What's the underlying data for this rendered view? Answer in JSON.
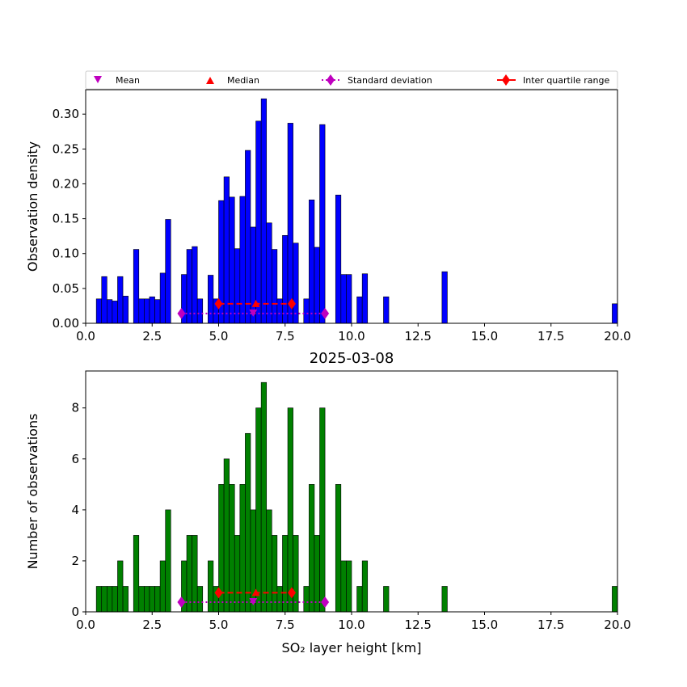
{
  "legend": {
    "entries": [
      {
        "label": "Mean",
        "marker": "triangle-down",
        "color": "#bf00bf"
      },
      {
        "label": "Median",
        "marker": "triangle-up",
        "color": "#ff0000"
      },
      {
        "label": "Standard deviation",
        "marker": "diamond-dotted-line",
        "color": "#bf00bf"
      },
      {
        "label": "Inter quartile range",
        "marker": "diamond-solid-line",
        "color": "#ff0000"
      }
    ]
  },
  "chart_data": [
    {
      "type": "bar",
      "title": "",
      "xlabel": "",
      "ylabel": "Observation density",
      "xlim": [
        0,
        20
      ],
      "ylim": [
        0,
        0.335
      ],
      "xticks": [
        "0.0",
        "2.5",
        "5.0",
        "7.5",
        "10.0",
        "12.5",
        "15.0",
        "17.5",
        "20.0"
      ],
      "xtick_values": [
        0,
        2.5,
        5,
        7.5,
        10,
        12.5,
        15,
        17.5,
        20
      ],
      "yticks": [
        "0.00",
        "0.05",
        "0.10",
        "0.15",
        "0.20",
        "0.25",
        "0.30"
      ],
      "ytick_values": [
        0,
        0.05,
        0.1,
        0.15,
        0.2,
        0.25,
        0.3
      ],
      "bar_color": "#0000ff",
      "bin_width": 0.2,
      "bin_left": [
        0.4,
        0.6,
        0.8,
        1.0,
        1.2,
        1.4,
        1.8,
        2.0,
        2.2,
        2.4,
        2.6,
        2.8,
        3.0,
        3.6,
        3.8,
        4.0,
        4.2,
        4.6,
        4.8,
        5.0,
        5.2,
        5.4,
        5.6,
        5.8,
        6.0,
        6.2,
        6.4,
        6.6,
        6.8,
        7.0,
        7.2,
        7.4,
        7.6,
        7.8,
        8.2,
        8.4,
        8.6,
        8.8,
        9.4,
        9.6,
        9.8,
        10.2,
        10.4,
        11.2,
        13.4,
        19.8
      ],
      "values": [
        0.035,
        0.067,
        0.034,
        0.032,
        0.067,
        0.039,
        0.106,
        0.035,
        0.035,
        0.038,
        0.034,
        0.072,
        0.149,
        0.07,
        0.106,
        0.11,
        0.035,
        0.069,
        0.035,
        0.176,
        0.21,
        0.181,
        0.107,
        0.182,
        0.248,
        0.138,
        0.29,
        0.322,
        0.144,
        0.106,
        0.035,
        0.126,
        0.287,
        0.115,
        0.035,
        0.177,
        0.109,
        0.285,
        0.184,
        0.07,
        0.07,
        0.038,
        0.071,
        0.038,
        0.074,
        0.028
      ],
      "stats": {
        "mean": 6.3,
        "median": 6.4,
        "std_range": [
          3.6,
          9.0
        ],
        "iqr_range": [
          5.0,
          7.75
        ],
        "y_level_std": 0.014,
        "y_level_iqr": 0.028
      }
    },
    {
      "type": "bar",
      "title": "2025-03-08",
      "xlabel": "SO₂ layer height [km]",
      "ylabel": "Number of observations",
      "xlim": [
        0,
        20
      ],
      "ylim": [
        0,
        9.45
      ],
      "xticks": [
        "0.0",
        "2.5",
        "5.0",
        "7.5",
        "10.0",
        "12.5",
        "15.0",
        "17.5",
        "20.0"
      ],
      "xtick_values": [
        0,
        2.5,
        5,
        7.5,
        10,
        12.5,
        15,
        17.5,
        20
      ],
      "yticks": [
        "0",
        "2",
        "4",
        "6",
        "8"
      ],
      "ytick_values": [
        0,
        2,
        4,
        6,
        8
      ],
      "bar_color": "#008000",
      "bin_width": 0.2,
      "bin_left": [
        0.4,
        0.6,
        0.8,
        1.0,
        1.2,
        1.4,
        1.8,
        2.0,
        2.2,
        2.4,
        2.6,
        2.8,
        3.0,
        3.6,
        3.8,
        4.0,
        4.2,
        4.6,
        4.8,
        5.0,
        5.2,
        5.4,
        5.6,
        5.8,
        6.0,
        6.2,
        6.4,
        6.6,
        6.8,
        7.0,
        7.2,
        7.4,
        7.6,
        7.8,
        8.2,
        8.4,
        8.6,
        8.8,
        9.4,
        9.6,
        9.8,
        10.2,
        10.4,
        11.2,
        13.4,
        19.8
      ],
      "values": [
        1,
        1,
        1,
        1,
        2,
        1,
        3,
        1,
        1,
        1,
        1,
        2,
        4,
        2,
        3,
        3,
        1,
        2,
        1,
        5,
        6,
        5,
        3,
        5,
        7,
        4,
        8,
        9,
        4,
        3,
        1,
        3,
        8,
        3,
        1,
        5,
        3,
        8,
        5,
        2,
        2,
        1,
        2,
        1,
        1,
        1
      ],
      "stats": {
        "mean": 6.3,
        "median": 6.4,
        "std_range": [
          3.6,
          9.0
        ],
        "iqr_range": [
          5.0,
          7.75
        ],
        "y_level_std": 0.38,
        "y_level_iqr": 0.75
      }
    }
  ]
}
